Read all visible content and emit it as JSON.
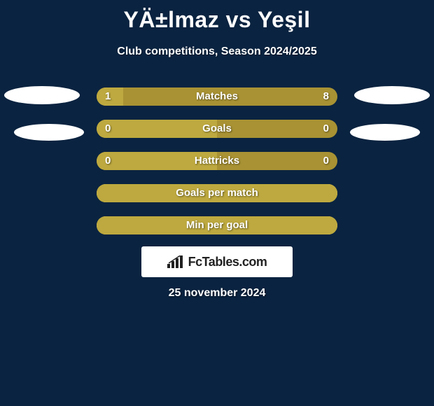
{
  "background_color": "#0a2340",
  "title": {
    "text": "YÄ±lmaz vs Yeşil",
    "color": "#ffffff",
    "fontsize": 32
  },
  "subtitle": {
    "text": "Club competitions, Season 2024/2025",
    "color": "#ffffff",
    "fontsize": 16
  },
  "bars": {
    "base_color": "#a89233",
    "fill_color": "#bda93f",
    "border_color": "#d4c35a",
    "height": 26,
    "radius": 13,
    "gap": 20,
    "rows": [
      {
        "label": "Matches",
        "left": "1",
        "right": "8",
        "left_pct": 11,
        "has_border": false
      },
      {
        "label": "Goals",
        "left": "0",
        "right": "0",
        "left_pct": 50,
        "has_border": false
      },
      {
        "label": "Hattricks",
        "left": "0",
        "right": "0",
        "left_pct": 50,
        "has_border": false
      },
      {
        "label": "Goals per match",
        "left": "",
        "right": "",
        "left_pct": 100,
        "has_border": true
      },
      {
        "label": "Min per goal",
        "left": "",
        "right": "",
        "left_pct": 100,
        "has_border": true
      }
    ],
    "label_fontsize": 15,
    "text_color": "#ffffff"
  },
  "avatars": {
    "color": "#ffffff"
  },
  "logo": {
    "text": "FcTables.com",
    "text_color": "#222222",
    "box_color": "#ffffff",
    "icon_color": "#222222"
  },
  "footer_date": {
    "text": "25 november 2024",
    "color": "#ffffff",
    "fontsize": 16
  }
}
